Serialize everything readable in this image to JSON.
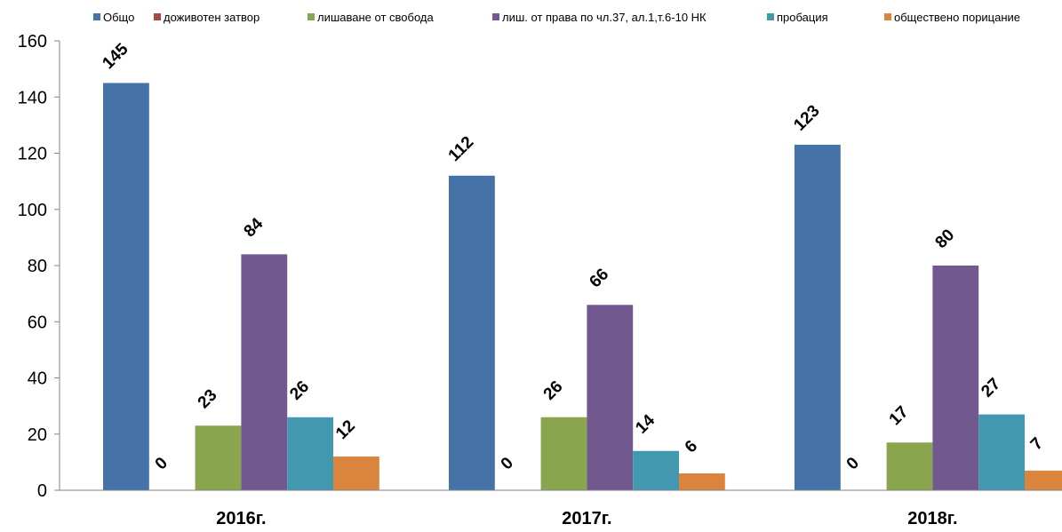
{
  "chart_data": {
    "type": "bar",
    "categories": [
      "2016г.",
      "2017г.",
      "2018г."
    ],
    "series": [
      {
        "name": "Общо",
        "color": "#4572A7",
        "values": [
          145,
          112,
          123
        ]
      },
      {
        "name": "доживотен затвор",
        "color": "#AA4643",
        "values": [
          0,
          0,
          0
        ]
      },
      {
        "name": "лишаване от свобода",
        "color": "#89A54E",
        "values": [
          23,
          26,
          17
        ]
      },
      {
        "name": "лиш. от права по чл.37, ал.1,т.6-10 НК",
        "color": "#71588F",
        "values": [
          84,
          66,
          80
        ]
      },
      {
        "name": "пробация",
        "color": "#4198AF",
        "values": [
          26,
          14,
          27
        ]
      },
      {
        "name": "обществено порицание",
        "color": "#DB843D",
        "values": [
          12,
          6,
          7
        ]
      }
    ],
    "ylim": [
      0,
      160
    ],
    "yticks": [
      0,
      20,
      40,
      60,
      80,
      100,
      120,
      140,
      160
    ],
    "legend": "top",
    "grid": false,
    "title": "",
    "xlabel": "",
    "ylabel": ""
  }
}
